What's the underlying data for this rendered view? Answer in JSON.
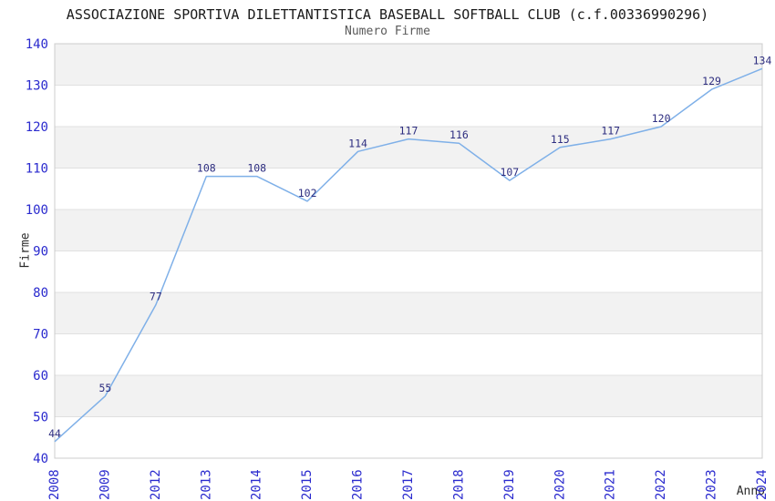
{
  "chart_data": {
    "type": "line",
    "title": "ASSOCIAZIONE SPORTIVA DILETTANTISTICA BASEBALL SOFTBALL CLUB (c.f.00336990296)",
    "subtitle": "Numero Firme",
    "xlabel": "Anno",
    "ylabel": "Firme",
    "categories": [
      "2008",
      "2009",
      "2012",
      "2013",
      "2014",
      "2015",
      "2016",
      "2017",
      "2018",
      "2019",
      "2020",
      "2021",
      "2022",
      "2023",
      "2024"
    ],
    "values": [
      44,
      55,
      77,
      108,
      108,
      102,
      114,
      117,
      116,
      107,
      115,
      117,
      120,
      129,
      134
    ],
    "ylim": [
      40,
      140
    ],
    "ytick_step": 10,
    "grid": true,
    "band_fill": true,
    "legend": "none",
    "colors": {
      "line": "#7fb0e8",
      "tick_label": "#2a2ace",
      "data_label": "#2e2e80",
      "band": "#f2f2f2",
      "grid": "#e0e0e0",
      "plot_border": "#cccccc",
      "title": "#1a1a1a",
      "subtitle": "#5a5a5a",
      "axis_title": "#2b2b2b",
      "background": "#ffffff"
    }
  }
}
